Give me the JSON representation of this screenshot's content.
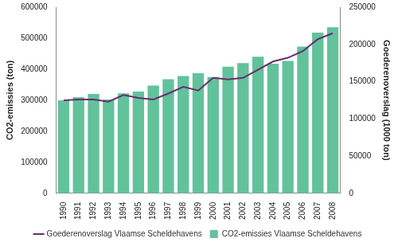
{
  "chart_data": {
    "type": "bar",
    "categories": [
      "1990",
      "1991",
      "1992",
      "1993",
      "1994",
      "1995",
      "1996",
      "1997",
      "1998",
      "1999",
      "2000",
      "2001",
      "2002",
      "2003",
      "2004",
      "2005",
      "2006",
      "2007",
      "2008"
    ],
    "series": [
      {
        "name": "CO2-emissies Vlaamse Scheldehavens",
        "type": "bar",
        "color": "#62c29c",
        "values": [
          300000,
          310000,
          320000,
          302000,
          322000,
          328000,
          347000,
          368000,
          378000,
          387000,
          375000,
          408000,
          420000,
          440000,
          418000,
          427000,
          473000,
          518000,
          535000
        ]
      },
      {
        "name": "Goederenoverslag Vlaamse Scheldehavens",
        "type": "line",
        "color": "#6b2d6b",
        "axis": "y2",
        "values": [
          125000,
          126000,
          126000,
          123000,
          132000,
          128000,
          126000,
          134000,
          143000,
          138000,
          155000,
          153000,
          155000,
          166000,
          177000,
          182000,
          191000,
          207000,
          215000
        ]
      }
    ],
    "y_label": "CO2-emissies (ton)",
    "y2_label": "Goederenoverslag (1000 ton)",
    "ylim": [
      0,
      600000
    ],
    "yticks": [
      0,
      100000,
      200000,
      300000,
      400000,
      500000,
      600000
    ],
    "y2lim": [
      0,
      250000
    ],
    "y2ticks": [
      0,
      50000,
      100000,
      150000,
      200000,
      250000
    ],
    "grid": false,
    "legend": "bottom"
  }
}
